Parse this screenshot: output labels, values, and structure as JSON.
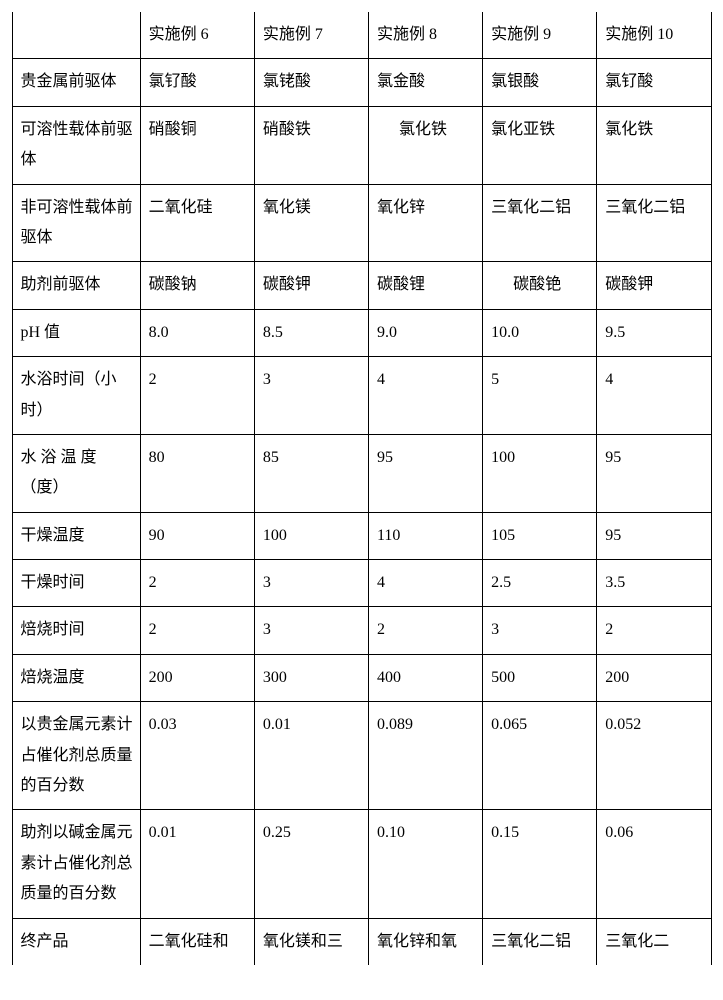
{
  "table": {
    "background_color": "#ffffff",
    "border_color": "#000000",
    "font_family": "SimSun",
    "font_size_pt": 12,
    "text_color": "#000000",
    "columns": [
      "",
      "实施例 6",
      "实施例 7",
      "实施例 8",
      "实施例 9",
      "实施例 10"
    ],
    "rows": [
      {
        "label": "贵金属前驱体",
        "cells": [
          "氯钌酸",
          "氯铑酸",
          "氯金酸",
          "氯银酸",
          "氯钌酸"
        ]
      },
      {
        "label": "可溶性载体前驱体",
        "cells": [
          "硝酸铜",
          "硝酸铁",
          "氯化铁",
          "氯化亚铁",
          "氯化铁"
        ],
        "indent": [
          false,
          false,
          true,
          false,
          false
        ]
      },
      {
        "label": "非可溶性载体前驱体",
        "cells": [
          "二氧化硅",
          "氧化镁",
          "氧化锌",
          "三氧化二铝",
          "三氧化二铝"
        ]
      },
      {
        "label": "助剂前驱体",
        "cells": [
          "碳酸钠",
          "碳酸钾",
          "碳酸锂",
          "碳酸铯",
          "碳酸钾"
        ],
        "indent": [
          false,
          false,
          false,
          true,
          false
        ]
      },
      {
        "label": "pH 值",
        "cells": [
          "8.0",
          "8.5",
          "9.0",
          "10.0",
          "9.5"
        ]
      },
      {
        "label": "水浴时间（小时）",
        "cells": [
          "2",
          "3",
          "4",
          "5",
          "4"
        ]
      },
      {
        "label": "水 浴 温 度（度）",
        "cells": [
          "80",
          "85",
          "95",
          "100",
          "95"
        ]
      },
      {
        "label": "干燥温度",
        "cells": [
          "90",
          "100",
          "110",
          "105",
          "95"
        ]
      },
      {
        "label": "干燥时间",
        "cells": [
          "2",
          "3",
          "4",
          "2.5",
          "3.5"
        ]
      },
      {
        "label": "焙烧时间",
        "cells": [
          "2",
          "3",
          "2",
          "3",
          "2"
        ]
      },
      {
        "label": "焙烧温度",
        "cells": [
          "200",
          "300",
          "400",
          "500",
          "200"
        ]
      },
      {
        "label": "以贵金属元素计占催化剂总质量的百分数",
        "cells": [
          "0.03",
          "0.01",
          "0.089",
          "0.065",
          "0.052"
        ]
      },
      {
        "label": "助剂以碱金属元素计占催化剂总质量的百分数",
        "cells": [
          "0.01",
          "0.25",
          "0.10",
          "0.15",
          "0.06"
        ]
      },
      {
        "label": "终产品",
        "cells": [
          "二氧化硅和",
          "氧化镁和三",
          "氧化锌和氧",
          "三氧化二铝",
          "三氧化二"
        ]
      }
    ]
  }
}
